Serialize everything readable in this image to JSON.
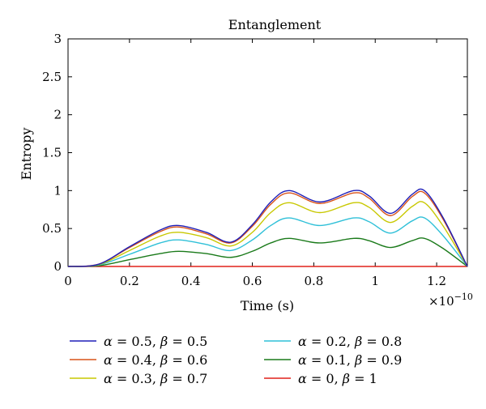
{
  "chart_data": {
    "type": "line",
    "title": "Entanglement",
    "xlabel": "Time (s)",
    "ylabel": "Entropy",
    "x_multiplier": "×10^−10",
    "xlim": [
      0,
      1.3
    ],
    "ylim": [
      0,
      3
    ],
    "x_ticks": [
      "0",
      "0.2",
      "0.4",
      "0.6",
      "0.8",
      "1",
      "1.2"
    ],
    "y_ticks": [
      "0",
      "0.5",
      "1",
      "1.5",
      "2",
      "2.5",
      "3"
    ],
    "grid": false,
    "legend_placement": "below",
    "x": [
      0,
      0.1,
      0.2,
      0.3,
      0.36,
      0.45,
      0.53,
      0.6,
      0.66,
      0.72,
      0.82,
      0.93,
      0.98,
      1.05,
      1.12,
      1.16,
      1.22,
      1.3
    ],
    "series": [
      {
        "name": "α = 0.5, β = 0.5",
        "alpha": "0.5",
        "beta": "0.5",
        "color": "#1f1fb8",
        "values": [
          0,
          0.03,
          0.26,
          0.48,
          0.54,
          0.45,
          0.32,
          0.55,
          0.85,
          1.0,
          0.85,
          1.0,
          0.93,
          0.7,
          0.95,
          1.0,
          0.65,
          0
        ]
      },
      {
        "name": "α = 0.4, β = 0.6",
        "alpha": "0.4",
        "beta": "0.6",
        "color": "#d95319",
        "values": [
          0,
          0.03,
          0.25,
          0.46,
          0.52,
          0.43,
          0.31,
          0.53,
          0.82,
          0.97,
          0.83,
          0.97,
          0.9,
          0.67,
          0.92,
          0.97,
          0.63,
          0
        ]
      },
      {
        "name": "α = 0.3, β = 0.7",
        "alpha": "0.3",
        "beta": "0.7",
        "color": "#c8c800",
        "values": [
          0,
          0.025,
          0.21,
          0.4,
          0.45,
          0.38,
          0.27,
          0.45,
          0.71,
          0.84,
          0.71,
          0.84,
          0.78,
          0.58,
          0.79,
          0.84,
          0.54,
          0
        ]
      },
      {
        "name": "α = 0.2, β = 0.8",
        "alpha": "0.2",
        "beta": "0.8",
        "color": "#2fc0d8",
        "values": [
          0,
          0.02,
          0.16,
          0.31,
          0.35,
          0.29,
          0.21,
          0.35,
          0.54,
          0.64,
          0.54,
          0.64,
          0.59,
          0.44,
          0.6,
          0.64,
          0.41,
          0
        ]
      },
      {
        "name": "α = 0.1, β = 0.9",
        "alpha": "0.1",
        "beta": "0.9",
        "color": "#1a7a1a",
        "values": [
          0,
          0.01,
          0.09,
          0.17,
          0.2,
          0.17,
          0.12,
          0.2,
          0.31,
          0.37,
          0.31,
          0.37,
          0.34,
          0.25,
          0.34,
          0.37,
          0.24,
          0
        ]
      },
      {
        "name": "α = 0, β = 1",
        "alpha": "0",
        "beta": "1",
        "color": "#e0201a",
        "values": [
          0,
          0,
          0,
          0,
          0,
          0,
          0,
          0,
          0,
          0,
          0,
          0,
          0,
          0,
          0,
          0,
          0,
          0
        ]
      }
    ]
  }
}
